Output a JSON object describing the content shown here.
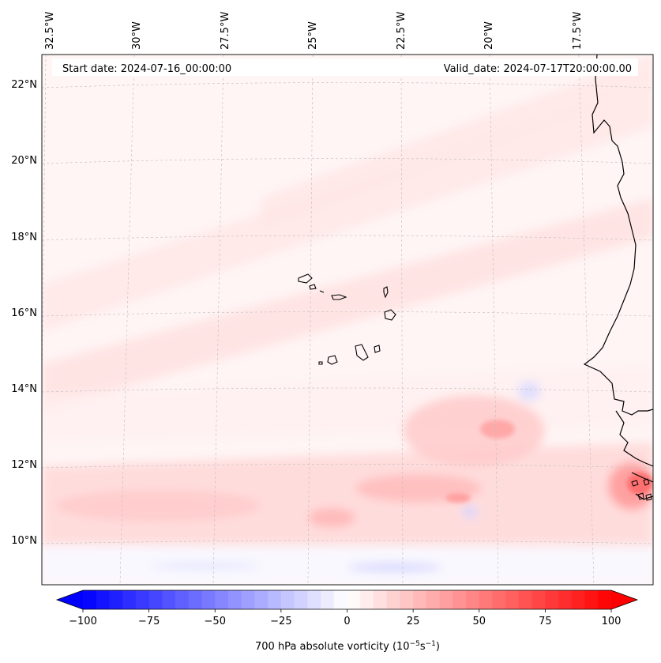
{
  "map": {
    "header": {
      "start_date": "Start date: 2024-07-16_00:00:00",
      "valid_date": "Valid_date: 2024-07-17T20:00:00.00"
    },
    "lon_labels": [
      "32.5°W",
      "30°W",
      "27.5°W",
      "25°W",
      "22.5°W",
      "20°W",
      "17.5°W"
    ],
    "lat_labels": [
      "22°N",
      "20°N",
      "18°N",
      "16°N",
      "14°N",
      "12°N",
      "10°N"
    ],
    "gridlines": true,
    "coastline": "West Africa and Cape Verde islands",
    "field": "700 hPa absolute vorticity"
  },
  "colorbar": {
    "ticks": [
      "−100",
      "−75",
      "−50",
      "−25",
      "0",
      "25",
      "50",
      "75",
      "100"
    ],
    "label": "700 hPa absolute vorticity (10",
    "label_exp1": "−5",
    "label_mid": "s",
    "label_exp2": "−1",
    "label_end": ")",
    "min": -100,
    "max": 100,
    "colormap": "bwr",
    "extend": "both",
    "colors": {
      "negative": "#0000ff",
      "neutral": "#ffffff",
      "positive": "#ff0000"
    }
  }
}
